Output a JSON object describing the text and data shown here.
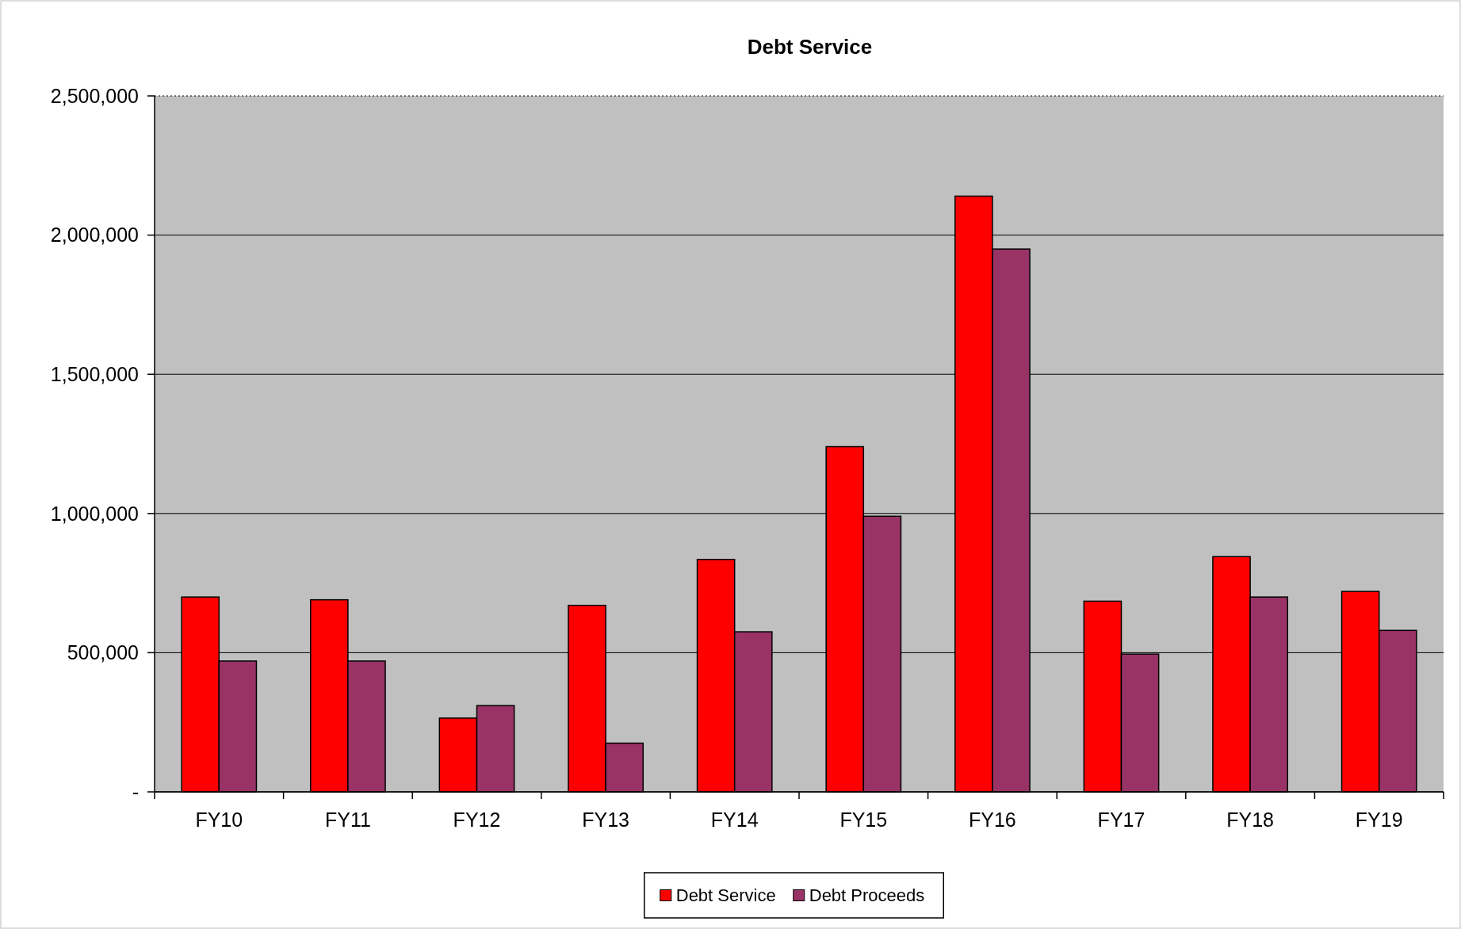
{
  "chart_data": {
    "type": "bar",
    "title": "Debt Service",
    "categories": [
      "FY10",
      "FY11",
      "FY12",
      "FY13",
      "FY14",
      "FY15",
      "FY16",
      "FY17",
      "FY18",
      "FY19"
    ],
    "series": [
      {
        "name": "Debt Service",
        "color": "#ff0000",
        "values": [
          700000,
          690000,
          265000,
          670000,
          835000,
          1240000,
          2140000,
          685000,
          845000,
          720000
        ]
      },
      {
        "name": "Debt Proceeds",
        "color": "#993366",
        "values": [
          470000,
          470000,
          310000,
          175000,
          575000,
          990000,
          1950000,
          495000,
          700000,
          580000
        ]
      }
    ],
    "ylim": [
      0,
      2500000
    ],
    "yticks": [
      {
        "value": 0,
        "label": "-"
      },
      {
        "value": 500000,
        "label": "500,000"
      },
      {
        "value": 1000000,
        "label": "1,000,000"
      },
      {
        "value": 1500000,
        "label": "1,500,000"
      },
      {
        "value": 2000000,
        "label": "2,000,000"
      },
      {
        "value": 2500000,
        "label": "2,500,000"
      }
    ],
    "grid": "y",
    "legend": "bottom"
  }
}
